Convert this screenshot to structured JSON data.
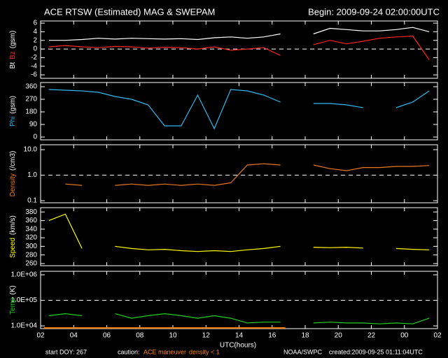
{
  "title": "ACE RTSW (Estimated) MAG & SWEPAM",
  "begin": "Begin: 2009-09-24 02:00:00UTC",
  "x_axis": {
    "label": "UTC(hours)",
    "xlim": [
      2,
      26
    ],
    "xticks": [
      {
        "value": 2,
        "label": "02"
      },
      {
        "value": 4,
        "label": "04"
      },
      {
        "value": 6,
        "label": "06"
      },
      {
        "value": 8,
        "label": "08"
      },
      10,
      12,
      14,
      16,
      18,
      20,
      22,
      {
        "value": 24,
        "label": "00"
      },
      {
        "value": 26,
        "label": "02"
      }
    ],
    "flag_range": [
      2.2,
      16.8
    ],
    "flag_color": "#ff8000"
  },
  "chart_data": [
    {
      "type": "line",
      "ylabel": [
        {
          "text": "Bt",
          "color": "#ffffff"
        },
        {
          "text": "Bz",
          "color": "#ff2020"
        },
        {
          "text": "(gsm)",
          "color": "#ffffff"
        }
      ],
      "ylim": [
        -6.8,
        6.5
      ],
      "yticks": [
        6,
        4,
        2,
        0,
        -2,
        -4,
        -6
      ],
      "log": false,
      "ref_line": 0,
      "x": [
        2.5,
        3.5,
        4.5,
        5.5,
        6.5,
        7.5,
        8.5,
        9.5,
        10.5,
        11.5,
        12.5,
        13.5,
        14.5,
        15.5,
        16.5,
        17.5,
        18.5,
        19.5,
        20.5,
        21.5,
        22.5,
        23.5,
        24.5,
        25.5
      ],
      "series": [
        {
          "name": "Bt",
          "color": "#ffffff",
          "values": [
            2,
            2,
            2.2,
            2.5,
            2.3,
            2.5,
            2.4,
            2.3,
            2.4,
            2.2,
            2.6,
            2.8,
            2.5,
            2.8,
            3.5,
            null,
            3.5,
            4.8,
            4.5,
            4.2,
            4.2,
            4.5,
            5,
            4
          ]
        },
        {
          "name": "Bz",
          "color": "#ff2020",
          "values": [
            0.5,
            0.8,
            0.5,
            0.3,
            0.6,
            0.5,
            0.2,
            0.4,
            0.3,
            0,
            0.5,
            -0.3,
            0,
            0.3,
            -1.5,
            null,
            1,
            2,
            1.2,
            1.8,
            2.5,
            2.8,
            3,
            -2.5
          ]
        }
      ]
    },
    {
      "type": "line",
      "ylabel": [
        {
          "text": "Phi",
          "color": "#30b8f0"
        },
        {
          "text": "(gsm)",
          "color": "#ffffff"
        }
      ],
      "ylim": [
        -20,
        390
      ],
      "yticks": [
        360,
        270,
        180,
        90,
        0
      ],
      "log": false,
      "x": [
        2.5,
        3.5,
        4.5,
        5.5,
        6.5,
        7.5,
        8.5,
        9.5,
        10.5,
        11.5,
        12.5,
        13.5,
        14.5,
        15.5,
        16.5,
        17.5,
        18.5,
        19.5,
        20.5,
        21.5,
        22.5,
        23.5,
        24.5,
        25.5
      ],
      "series": [
        {
          "name": "Phi",
          "color": "#30b8f0",
          "values": [
            340,
            335,
            330,
            320,
            290,
            270,
            230,
            80,
            80,
            300,
            60,
            340,
            330,
            300,
            250,
            null,
            240,
            240,
            230,
            210,
            null,
            210,
            250,
            330
          ]
        }
      ]
    },
    {
      "type": "line",
      "ylabel": [
        {
          "text": "Density",
          "color": "#e87820"
        },
        {
          "text": "(/cm3)",
          "color": "#ffffff"
        }
      ],
      "ylim": [
        0.083,
        15.6
      ],
      "yticks": [
        {
          "value": 10,
          "label": "10.0"
        },
        {
          "value": 1,
          "label": "1.0"
        },
        0.1
      ],
      "log": true,
      "ref_line": 1,
      "x": [
        2.5,
        3.5,
        4.5,
        5.5,
        6.5,
        7.5,
        8.5,
        9.5,
        10.5,
        11.5,
        12.5,
        13.5,
        14.5,
        15.5,
        16.5,
        17.5,
        18.5,
        19.5,
        20.5,
        21.5,
        22.5,
        23.5,
        24.5,
        25.5
      ],
      "series": [
        {
          "name": "Density",
          "color": "#e87820",
          "values": [
            null,
            0.45,
            0.4,
            null,
            0.4,
            0.45,
            0.4,
            0.45,
            0.4,
            0.45,
            0.4,
            0.5,
            2.5,
            2.8,
            2.5,
            null,
            2.5,
            1.8,
            1.5,
            2,
            2,
            2.2,
            2.2,
            2.4
          ]
        }
      ]
    },
    {
      "type": "line",
      "ylabel": [
        {
          "text": "Speed",
          "color": "#ffff00"
        },
        {
          "text": "(km/s)",
          "color": "#ffffff"
        }
      ],
      "ylim": [
        255,
        390
      ],
      "yticks": [
        380,
        360,
        340,
        320,
        300,
        280,
        260
      ],
      "log": false,
      "x": [
        2.5,
        3.5,
        4.5,
        5.5,
        6.5,
        7.5,
        8.5,
        9.5,
        10.5,
        11.5,
        12.5,
        13.5,
        14.5,
        15.5,
        16.5,
        17.5,
        18.5,
        19.5,
        20.5,
        21.5,
        22.5,
        23.5,
        24.5,
        25.5
      ],
      "series": [
        {
          "name": "Speed",
          "color": "#ffff00",
          "values": [
            360,
            375,
            295,
            null,
            300,
            295,
            292,
            293,
            290,
            288,
            290,
            288,
            292,
            295,
            300,
            null,
            298,
            297,
            298,
            296,
            null,
            295,
            293,
            292
          ]
        }
      ]
    },
    {
      "type": "line",
      "ylabel": [
        {
          "text": "Temp",
          "color": "#20d020"
        },
        {
          "text": "(K)",
          "color": "#ffffff"
        }
      ],
      "ylim": [
        7800,
        1370000
      ],
      "yticks": [
        {
          "value": 1000000,
          "label": "1.0E+06"
        },
        {
          "value": 100000,
          "label": "1.0E+05"
        },
        {
          "value": 10000,
          "label": "1.0E+04"
        }
      ],
      "log": true,
      "ref_line": 100000,
      "x": [
        2.5,
        3.5,
        4.5,
        5.5,
        6.5,
        7.5,
        8.5,
        9.5,
        10.5,
        11.5,
        12.5,
        13.5,
        14.5,
        15.5,
        16.5,
        17.5,
        18.5,
        19.5,
        20.5,
        21.5,
        22.5,
        23.5,
        24.5,
        25.5
      ],
      "series": [
        {
          "name": "Temp",
          "color": "#20d020",
          "values": [
            25000,
            30000,
            25000,
            null,
            30000,
            20000,
            25000,
            30000,
            25000,
            20000,
            25000,
            20000,
            13000,
            14000,
            14000,
            null,
            13000,
            14000,
            13000,
            13000,
            12000,
            13000,
            12000,
            20000
          ]
        }
      ]
    }
  ],
  "footer": {
    "doy": "start DOY: 267",
    "caution": "caution:",
    "maneuver": "ACE maneuver",
    "density": "density < 1",
    "org": "NOAA/SWPC",
    "created": "created:2009-09-25 01:11:04UTC"
  }
}
